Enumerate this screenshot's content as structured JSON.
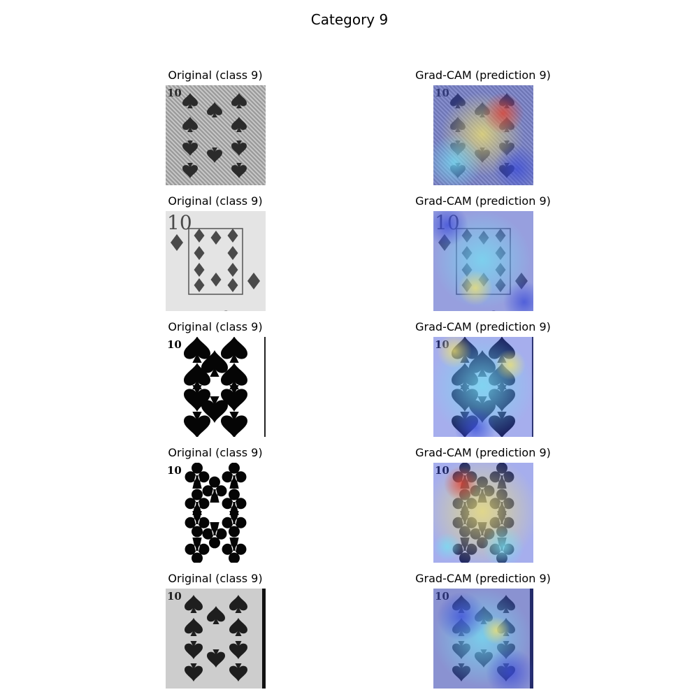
{
  "title": "Category 9",
  "rows": [
    {
      "orig_title": "Original (class 9)",
      "cam_title": "Grad-CAM (prediction 9)",
      "suit": "spade",
      "style": "worn",
      "rank": "10"
    },
    {
      "orig_title": "Original (class 9)",
      "cam_title": "Grad-CAM (prediction 9)",
      "suit": "diamond",
      "style": "framed",
      "rank": "10"
    },
    {
      "orig_title": "Original (class 9)",
      "cam_title": "Grad-CAM (prediction 9)",
      "suit": "spade",
      "style": "large",
      "rank": "10"
    },
    {
      "orig_title": "Original (class 9)",
      "cam_title": "Grad-CAM (prediction 9)",
      "suit": "club",
      "style": "large",
      "rank": "10"
    },
    {
      "orig_title": "Original (class 9)",
      "cam_title": "Grad-CAM (prediction 9)",
      "suit": "spade",
      "style": "photo",
      "rank": "10"
    }
  ],
  "colors": {
    "heat_cool": "#3a4bd8",
    "heat_mid": "#74e0f2",
    "heat_warm": "#f4e46a",
    "heat_hot": "#e23b2a"
  }
}
